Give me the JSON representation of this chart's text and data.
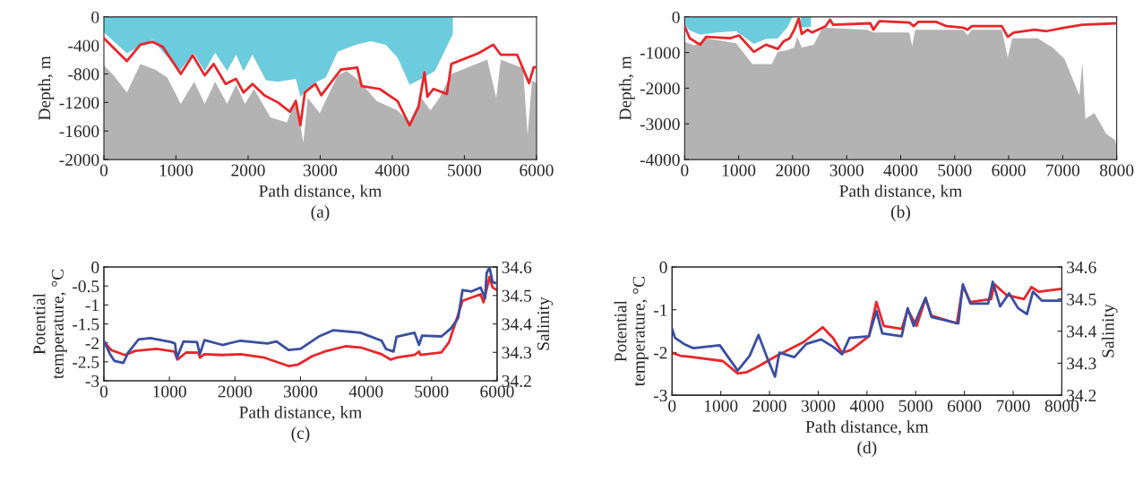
{
  "chart_data": [
    {
      "type": "area",
      "xlabel": "Path distance, km",
      "ylabel": "Depth, m",
      "annotations": [
        "(a)"
      ],
      "xlim": [
        0,
        6000
      ],
      "xticks": [
        0,
        1000,
        2000,
        3000,
        4000,
        5000,
        6000
      ],
      "ylim": [
        -2000,
        0
      ],
      "yticks": [
        -2000,
        -1600,
        -1200,
        -800,
        -400,
        0
      ],
      "grid": false,
      "legend": false,
      "series": [
        {
          "type": "area",
          "color": "#ffffff",
          "x": [
            0,
            133,
            319,
            506,
            713,
            879,
            1066,
            1252,
            1398,
            1543,
            1709,
            1833,
            1957,
            2082,
            2310,
            2538,
            2662,
            2766,
            2828,
            2994,
            3243,
            3368,
            3534,
            3783,
            4073,
            4239,
            4404,
            4529,
            4653,
            4819,
            5317,
            5442,
            5504,
            5814,
            5876,
            5938,
            6000
          ],
          "values": [
            -680,
            -820,
            -1060,
            -660,
            -740,
            -850,
            -1220,
            -910,
            -1220,
            -910,
            -1220,
            -950,
            -1220,
            -1010,
            -1410,
            -1480,
            -1140,
            -1760,
            -1140,
            -1350,
            -820,
            -760,
            -890,
            -1180,
            -1310,
            -1480,
            -1140,
            -1310,
            -1140,
            -800,
            -600,
            -1140,
            -600,
            -720,
            -1660,
            -890,
            -930
          ]
        },
        {
          "type": "area",
          "color": "#6ccbdc",
          "x": [
            0,
            319,
            672,
            1049,
            1244,
            1398,
            1543,
            1709,
            1833,
            1937,
            2061,
            2248,
            2414,
            2662,
            2725,
            2912,
            3077,
            3243,
            3492,
            3700,
            3907,
            4073,
            4239,
            4404,
            4591,
            4778,
            4840
          ],
          "values": [
            -220,
            -510,
            -320,
            -760,
            -510,
            -760,
            -500,
            -760,
            -530,
            -760,
            -530,
            -890,
            -910,
            -870,
            -1120,
            -930,
            -850,
            -490,
            -390,
            -340,
            -390,
            -570,
            -950,
            -870,
            -760,
            -370,
            -240
          ]
        },
        {
          "type": "line",
          "color": "#e8262a",
          "x": [
            0,
            319,
            506,
            672,
            817,
            1066,
            1232,
            1398,
            1522,
            1688,
            1833,
            1937,
            2061,
            2227,
            2414,
            2579,
            2662,
            2725,
            2787,
            2932,
            3015,
            3285,
            3513,
            3575,
            3824,
            4073,
            4239,
            4363,
            4446,
            4487,
            4570,
            4757,
            4819,
            5193,
            5400,
            5504,
            5731,
            5897,
            5959,
            6000
          ],
          "values": [
            -300,
            -620,
            -390,
            -350,
            -420,
            -800,
            -540,
            -820,
            -660,
            -940,
            -870,
            -1060,
            -940,
            -1100,
            -1200,
            -1330,
            -1180,
            -1520,
            -1060,
            -940,
            -1100,
            -740,
            -710,
            -970,
            -1010,
            -1180,
            -1520,
            -1260,
            -780,
            -1120,
            -1010,
            -1080,
            -660,
            -510,
            -390,
            -530,
            -530,
            -930,
            -710,
            -700
          ]
        }
      ]
    },
    {
      "type": "area",
      "xlabel": "Path distance, km",
      "ylabel": "Depth, m",
      "annotations": [
        "(b)"
      ],
      "xlim": [
        0,
        8000
      ],
      "xticks": [
        0,
        1000,
        2000,
        3000,
        4000,
        5000,
        6000,
        7000,
        8000
      ],
      "ylim": [
        -4000,
        0
      ],
      "yticks": [
        -4000,
        -3000,
        -2000,
        -1000,
        0
      ],
      "grid": false,
      "legend": false,
      "series": [
        {
          "type": "area",
          "color": "#ffffff",
          "x": [
            0,
            177,
            398,
            951,
            1255,
            1614,
            1725,
            1891,
            2029,
            2084,
            2167,
            2389,
            2554,
            3384,
            3494,
            4158,
            4213,
            4269,
            5154,
            5237,
            5320,
            5872,
            5983,
            6065,
            6535,
            6812,
            7033,
            7309,
            7364,
            7420,
            7586,
            7807,
            7973,
            8000
          ],
          "values": [
            -700,
            -800,
            -600,
            -740,
            -1320,
            -1320,
            -980,
            -940,
            -860,
            -560,
            -860,
            -780,
            -300,
            -360,
            -440,
            -440,
            -820,
            -360,
            -360,
            -520,
            -360,
            -360,
            -1140,
            -600,
            -600,
            -860,
            -1180,
            -2200,
            -1280,
            -2860,
            -2700,
            -3280,
            -3460,
            -3660
          ]
        },
        {
          "type": "area",
          "color": "#6ccbdc",
          "x": [
            0,
            94,
            288,
            600,
            951,
            1282,
            1504,
            1725,
            1900,
            1990,
            2050,
            2150,
            2340
          ],
          "values": [
            -220,
            -380,
            -500,
            -440,
            -400,
            -760,
            -620,
            -600,
            -300,
            -20,
            null,
            -300,
            -280
          ]
        },
        {
          "type": "line",
          "color": "#e8262a",
          "x": [
            0,
            94,
            288,
            398,
            840,
            1006,
            1282,
            1504,
            1725,
            1836,
            1946,
            2029,
            2112,
            2167,
            2278,
            2361,
            2610,
            2693,
            2748,
            3439,
            3494,
            3605,
            4158,
            4241,
            4324,
            4656,
            4850,
            5154,
            5237,
            5320,
            5872,
            5983,
            6093,
            6480,
            6701,
            7033,
            7364,
            8000
          ],
          "values": [
            -260,
            -600,
            -780,
            -560,
            -600,
            -520,
            -980,
            -780,
            -900,
            -680,
            -600,
            -360,
            -40,
            -480,
            -360,
            -440,
            -260,
            -80,
            -220,
            -180,
            -360,
            -120,
            -160,
            -260,
            -140,
            -140,
            -260,
            -300,
            -360,
            -260,
            -260,
            -560,
            -440,
            -360,
            -400,
            -300,
            -220,
            -180
          ]
        }
      ]
    },
    {
      "type": "line",
      "xlabel": "Path distance, km",
      "ylabel": "Potential\ntemperature, °C",
      "y2label": "Salinity",
      "annotations": [
        "(c)"
      ],
      "xlim": [
        0,
        6000
      ],
      "xticks": [
        0,
        1000,
        2000,
        3000,
        4000,
        5000,
        6000
      ],
      "ylim": [
        -3,
        0
      ],
      "yticks": [
        -3,
        -2.5,
        -2,
        -1.5,
        -1,
        -0.5,
        0
      ],
      "y2lim": [
        34.2,
        34.6
      ],
      "y2ticks": [
        34.2,
        34.3,
        34.4,
        34.5,
        34.6
      ],
      "grid": false,
      "legend": false,
      "series": [
        {
          "color": "#e8262a",
          "x": [
            0,
            112,
            321,
            481,
            802,
            1076,
            1122,
            1260,
            1443,
            1466,
            1534,
            1809,
            2084,
            2450,
            2817,
            2954,
            3183,
            3366,
            3687,
            3916,
            4237,
            4374,
            4466,
            4740,
            4809,
            4832,
            5152,
            5267,
            5382,
            5473,
            5748,
            5794,
            5885,
            5931,
            6000
          ],
          "values": [
            -1.97,
            -2.19,
            -2.32,
            -2.21,
            -2.16,
            -2.23,
            -2.44,
            -2.25,
            -2.26,
            -2.39,
            -2.3,
            -2.32,
            -2.3,
            -2.39,
            -2.61,
            -2.58,
            -2.35,
            -2.23,
            -2.09,
            -2.12,
            -2.3,
            -2.44,
            -2.39,
            -2.32,
            -2.23,
            -2.32,
            -2.25,
            -1.98,
            -1.38,
            -0.89,
            -0.72,
            -0.93,
            -0.26,
            -0.54,
            -0.61
          ]
        },
        {
          "color": "#3a4ea0",
          "axis": "y2",
          "x": [
            0,
            92,
            160,
            298,
            367,
            527,
            710,
            1031,
            1085,
            1113,
            1214,
            1420,
            1466,
            1534,
            1809,
            2084,
            2496,
            2634,
            2817,
            3000,
            3275,
            3504,
            3916,
            4237,
            4305,
            4420,
            4466,
            4740,
            4809,
            4855,
            5152,
            5290,
            5404,
            5473,
            5610,
            5748,
            5817,
            5840,
            5885,
            5931,
            6000
          ],
          "values": [
            34.341,
            34.294,
            34.27,
            34.263,
            34.298,
            34.345,
            34.35,
            34.336,
            34.331,
            34.28,
            34.338,
            34.336,
            34.294,
            34.343,
            34.326,
            34.341,
            34.331,
            34.338,
            34.308,
            34.312,
            34.355,
            34.378,
            34.369,
            34.341,
            34.312,
            34.303,
            34.355,
            34.369,
            34.326,
            34.359,
            34.356,
            34.383,
            34.42,
            34.519,
            34.514,
            34.528,
            34.49,
            34.579,
            34.598,
            34.547,
            34.542
          ]
        }
      ]
    },
    {
      "type": "line",
      "xlabel": "Path distance, km",
      "ylabel": "Potential\ntemperature, °C",
      "y2label": "Salinity",
      "annotations": [
        "(d)"
      ],
      "xlim": [
        0,
        8000
      ],
      "xticks": [
        0,
        1000,
        2000,
        3000,
        4000,
        5000,
        6000,
        7000,
        8000
      ],
      "ylim": [
        -3,
        0
      ],
      "yticks": [
        -3,
        -2,
        -1,
        0
      ],
      "y2lim": [
        34.2,
        34.6
      ],
      "y2ticks": [
        34.2,
        34.3,
        34.4,
        34.5,
        34.6
      ],
      "grid": false,
      "legend": false,
      "series": [
        {
          "color": "#e8262a",
          "x": [
            0,
            184,
            428,
            1041,
            1347,
            1530,
            1775,
            2142,
            2387,
            2693,
            3091,
            3305,
            3489,
            3673,
            4040,
            4193,
            4346,
            4713,
            4836,
            5019,
            5203,
            5325,
            5845,
            5968,
            6121,
            6550,
            6611,
            6856,
            7223,
            7376,
            7529,
            8000
          ],
          "values": [
            -2.01,
            -2.08,
            -2.11,
            -2.2,
            -2.49,
            -2.46,
            -2.32,
            -2.08,
            -1.94,
            -1.76,
            -1.41,
            -1.66,
            -2.01,
            -1.94,
            -1.62,
            -0.82,
            -1.38,
            -1.45,
            -1.0,
            -1.38,
            -0.74,
            -1.14,
            -1.32,
            -0.44,
            -0.82,
            -0.75,
            -0.4,
            -0.65,
            -0.75,
            -0.47,
            -0.58,
            -0.51
          ]
        },
        {
          "color": "#3a4ea0",
          "axis": "y2",
          "x": [
            0,
            61,
            245,
            428,
            979,
            1347,
            1592,
            1775,
            1959,
            2112,
            2203,
            2510,
            2754,
            3060,
            3305,
            3489,
            3642,
            4040,
            4193,
            4315,
            4713,
            4836,
            4958,
            5203,
            5325,
            5876,
            5968,
            6121,
            6489,
            6581,
            6734,
            6917,
            7100,
            7284,
            7407,
            7590,
            8000
          ],
          "values": [
            34.407,
            34.379,
            34.36,
            34.347,
            34.356,
            34.277,
            34.323,
            34.388,
            34.314,
            34.258,
            34.333,
            34.319,
            34.36,
            34.374,
            34.351,
            34.328,
            34.379,
            34.384,
            34.463,
            34.393,
            34.384,
            34.472,
            34.416,
            34.504,
            34.444,
            34.424,
            34.546,
            34.486,
            34.486,
            34.554,
            34.477,
            34.518,
            34.472,
            34.453,
            34.523,
            34.495,
            34.495
          ]
        }
      ]
    }
  ]
}
